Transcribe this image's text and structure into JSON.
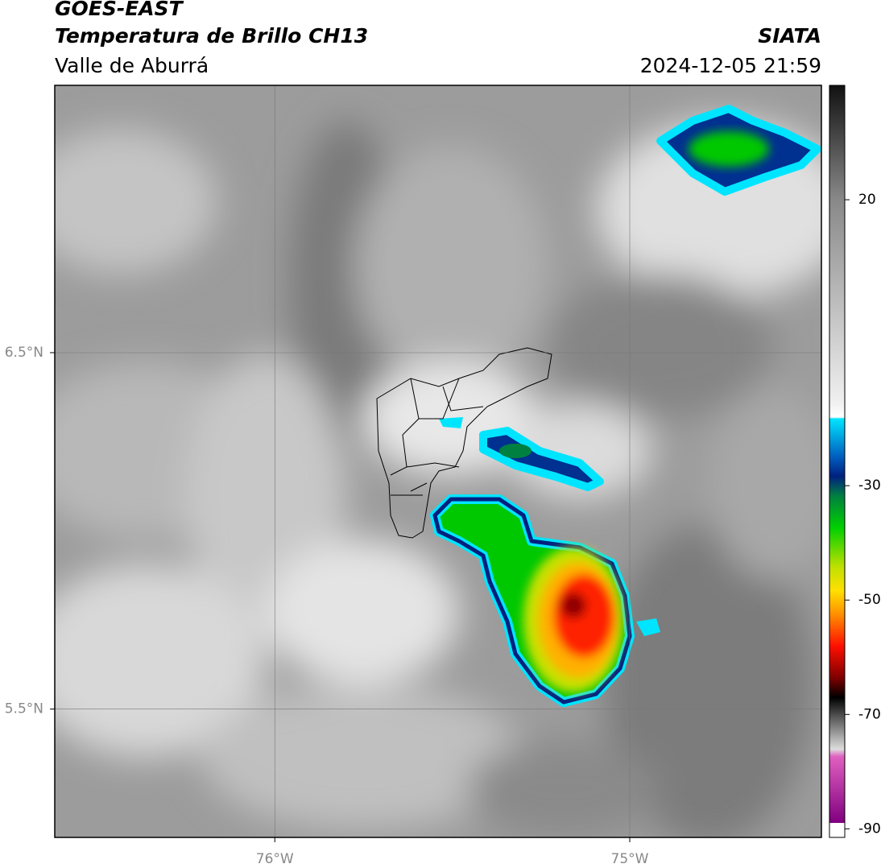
{
  "header": {
    "satellite": "GOES-EAST",
    "product": "Temperatura de Brillo CH13",
    "region": "Valle de Aburrá",
    "source": "SIATA",
    "timestamp": "2024-12-05 21:59"
  },
  "map": {
    "xlim": [
      -76.62,
      -74.46
    ],
    "ylim": [
      5.14,
      7.25
    ],
    "xticks": [
      {
        "value": -76,
        "label": "76°W"
      },
      {
        "value": -75,
        "label": "75°W"
      }
    ],
    "yticks": [
      {
        "value": 6.5,
        "label": "6.5°N"
      },
      {
        "value": 5.5,
        "label": "5.5°N"
      }
    ],
    "grid": true
  },
  "colorbar": {
    "lim": [
      -91.5,
      40
    ],
    "ticks": [
      20,
      -30,
      -50,
      -70,
      -90
    ]
  }
}
